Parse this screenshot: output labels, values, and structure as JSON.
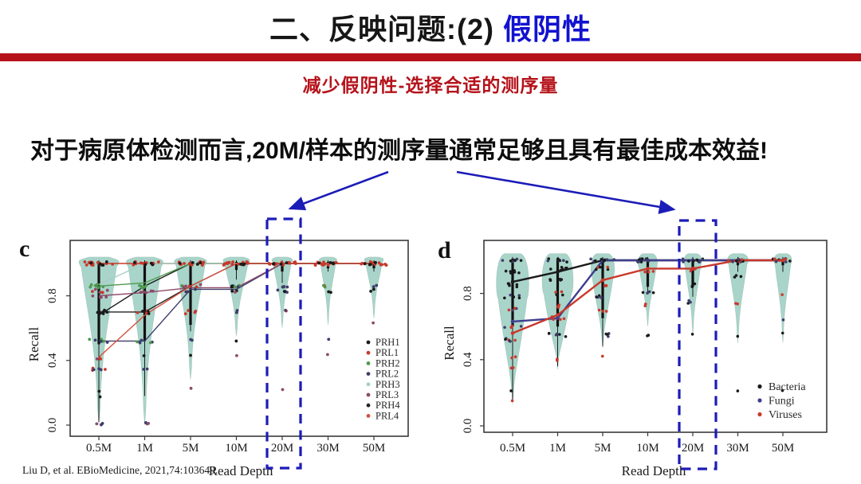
{
  "slide": {
    "title_prefix": "二、反映问题:(2) ",
    "title_highlight": "假阴性",
    "subtitle": "减少假阴性-选择合适的测序量",
    "statement": "对于病原体检测而言,20M/样本的测序量通常足够且具有最佳成本效益!",
    "citation": "Liu D, et al. EBioMedicine, 2021,74:103649.",
    "colors": {
      "accent_red": "#b5121a",
      "title_blue": "#1212cf",
      "annotation_blue": "#1c1cb8",
      "violin_fill": "#a9d4c9"
    }
  },
  "annotations": {
    "highlight_category": "20M",
    "meaning": "20M read depth column highlighted in both panels"
  },
  "chart_data": [
    {
      "id": "c",
      "type": "violin+line",
      "panel_label": "c",
      "xlabel": "Read Depth",
      "ylabel": "Recall",
      "categories": [
        "0.5M",
        "1M",
        "5M",
        "10M",
        "20M",
        "30M",
        "50M"
      ],
      "yticks": [
        0.0,
        0.4,
        0.8
      ],
      "ylim": [
        0,
        1.05
      ],
      "grid": false,
      "legend_position": "right-middle",
      "highlight_category": "20M",
      "series": [
        {
          "name": "PRH1",
          "color": "#1a1a1a",
          "values": [
            0.68,
            0.86,
            1,
            1,
            1,
            1,
            1
          ]
        },
        {
          "name": "PRL1",
          "color": "#c8392b",
          "values": [
            1,
            1,
            1,
            1,
            1,
            1,
            1
          ]
        },
        {
          "name": "PRH2",
          "color": "#4d9a4d",
          "values": [
            0.86,
            0.88,
            1,
            1,
            1,
            1,
            1
          ]
        },
        {
          "name": "PRL2",
          "color": "#3d3d6b",
          "values": [
            0.52,
            0.52,
            0.84,
            0.84,
            1,
            1,
            1
          ]
        },
        {
          "name": "PRH3",
          "color": "#a5cfc4",
          "values": [
            0.87,
            1,
            1,
            1,
            1,
            1,
            1
          ]
        },
        {
          "name": "PRL3",
          "color": "#8e4a6a",
          "values": [
            0.8,
            0.82,
            0.85,
            0.85,
            1,
            1,
            1
          ]
        },
        {
          "name": "PRH4",
          "color": "#232323",
          "values": [
            0.7,
            0.7,
            0.86,
            1,
            1,
            1,
            1
          ]
        },
        {
          "name": "PRL4",
          "color": "#d4503c",
          "values": [
            0.42,
            0.68,
            0.86,
            1,
            1,
            1,
            1
          ]
        }
      ],
      "violins": [
        {
          "lo": 0.0,
          "hi": 1.04,
          "hw": 27,
          "bulge": 0.06
        },
        {
          "lo": 0.0,
          "hi": 1.04,
          "hw": 25,
          "bulge": 0.06
        },
        {
          "lo": 0.28,
          "hi": 1.04,
          "hw": 22,
          "bulge": 0.07
        },
        {
          "lo": 0.55,
          "hi": 1.04,
          "hw": 18,
          "bulge": 0.08
        },
        {
          "lo": 0.6,
          "hi": 1.04,
          "hw": 14,
          "bulge": 0.08
        },
        {
          "lo": 0.62,
          "hi": 1.04,
          "hw": 12,
          "bulge": 0.08
        },
        {
          "lo": 0.66,
          "hi": 1.04,
          "hw": 13,
          "bulge": 0.08
        }
      ],
      "whiskers": [
        [
          0.5,
          0.02
        ],
        [
          0.52,
          0.18
        ],
        [
          0.62,
          0.58
        ],
        [
          0.96,
          0.9
        ],
        [
          0.95,
          0.88
        ],
        [
          0.97,
          0.95
        ],
        [
          0.97,
          0.95
        ]
      ],
      "dot_clusters": [
        [
          [
            1,
            "r",
            15,
            36
          ],
          [
            1,
            "k",
            5,
            30
          ],
          [
            0.86,
            "g",
            7,
            26
          ],
          [
            0.83,
            "p r",
            6,
            26
          ],
          [
            0.8,
            "p",
            4,
            20
          ],
          [
            0.7,
            "k",
            7,
            22
          ],
          [
            0.52,
            "g n",
            6,
            24
          ],
          [
            0.42,
            "r p",
            3,
            10
          ],
          [
            0.35,
            "n r",
            6,
            22
          ],
          [
            0.22,
            "k",
            1,
            2
          ],
          [
            0.18,
            "k",
            1,
            14
          ],
          [
            0.01,
            "n p",
            3,
            10
          ]
        ],
        [
          [
            1,
            "r",
            15,
            36
          ],
          [
            1,
            "k",
            4,
            30
          ],
          [
            0.86,
            "g",
            6,
            26
          ],
          [
            0.83,
            "p",
            5,
            24
          ],
          [
            0.7,
            "r k",
            6,
            22
          ],
          [
            0.52,
            "n g",
            5,
            22
          ],
          [
            0.43,
            "k",
            1,
            4
          ],
          [
            0.35,
            "n",
            2,
            12
          ],
          [
            0.01,
            "p n",
            3,
            14
          ]
        ],
        [
          [
            1,
            "r",
            15,
            36
          ],
          [
            1,
            "k",
            4,
            30
          ],
          [
            0.86,
            "p g r",
            7,
            26
          ],
          [
            0.83,
            "n",
            3,
            18
          ],
          [
            0.7,
            "r",
            4,
            16
          ],
          [
            0.52,
            "n",
            2,
            10
          ],
          [
            0.43,
            "k",
            1,
            2
          ],
          [
            0.22,
            "p",
            1,
            2
          ]
        ],
        [
          [
            1,
            "r",
            14,
            34
          ],
          [
            1,
            "k",
            4,
            28
          ],
          [
            0.86,
            "n g k",
            6,
            22
          ],
          [
            0.83,
            "k p",
            3,
            14
          ],
          [
            0.7,
            "n",
            2,
            8
          ],
          [
            0.53,
            "k",
            1,
            2
          ],
          [
            0.43,
            "p",
            1,
            2
          ]
        ],
        [
          [
            1,
            "r",
            14,
            34
          ],
          [
            1,
            "k",
            4,
            28
          ],
          [
            0.86,
            "n p",
            5,
            20
          ],
          [
            0.83,
            "k n",
            4,
            16
          ],
          [
            0.7,
            "r n",
            2,
            10
          ],
          [
            0.22,
            "p",
            1,
            2
          ]
        ],
        [
          [
            1,
            "r",
            13,
            32
          ],
          [
            1,
            "k",
            4,
            26
          ],
          [
            0.86,
            "g r",
            3,
            14
          ],
          [
            0.83,
            "k",
            2,
            8
          ],
          [
            0.52,
            "n",
            1,
            2
          ],
          [
            0.43,
            "p",
            1,
            2
          ]
        ],
        [
          [
            1,
            "r",
            13,
            32
          ],
          [
            1,
            "k",
            4,
            26
          ],
          [
            0.86,
            "n",
            2,
            8
          ],
          [
            0.83,
            "k",
            2,
            8
          ],
          [
            0.63,
            "p",
            1,
            2
          ]
        ]
      ]
    },
    {
      "id": "d",
      "type": "violin+line",
      "panel_label": "d",
      "xlabel": "Read Depth",
      "ylabel": "Recall",
      "categories": [
        "0.5M",
        "1M",
        "5M",
        "10M",
        "20M",
        "30M",
        "50M"
      ],
      "yticks": [
        0.0,
        0.4,
        0.8
      ],
      "ylim": [
        0,
        1.05
      ],
      "grid": false,
      "legend_position": "right-lower",
      "highlight_category": "20M",
      "series": [
        {
          "name": "Bacteria",
          "color": "#1a1a1a",
          "values": [
            0.87,
            0.93,
            1,
            1,
            1,
            1,
            1
          ]
        },
        {
          "name": "Fungi",
          "color": "#3d3d8f",
          "values": [
            0.63,
            0.65,
            1,
            1,
            1,
            1,
            1
          ]
        },
        {
          "name": "Viruses",
          "color": "#c8392b",
          "values": [
            0.56,
            0.67,
            0.88,
            0.95,
            0.95,
            1,
            1
          ]
        }
      ],
      "violins": [
        {
          "lo": 0.13,
          "hi": 1.04,
          "hw": 22,
          "bulge": 0.3
        },
        {
          "lo": 0.34,
          "hi": 1.04,
          "hw": 21,
          "bulge": 0.35
        },
        {
          "lo": 0.47,
          "hi": 1.04,
          "hw": 16,
          "bulge": 0.25
        },
        {
          "lo": 0.6,
          "hi": 1.04,
          "hw": 13,
          "bulge": 0.2
        },
        {
          "lo": 0.55,
          "hi": 1.04,
          "hw": 12,
          "bulge": 0.15
        },
        {
          "lo": 0.5,
          "hi": 1.04,
          "hw": 14,
          "bulge": 0.12
        },
        {
          "lo": 0.5,
          "hi": 1.04,
          "hw": 12,
          "bulge": 0.12
        }
      ],
      "whiskers": [
        [
          0.6,
          0.15
        ],
        [
          0.6,
          0.36
        ],
        [
          0.65,
          0.48
        ],
        [
          0.84,
          0.8
        ],
        [
          0.84,
          0.78
        ],
        [
          0.97,
          0.93
        ],
        [
          0.97,
          0.93
        ]
      ],
      "dot_clusters": [
        [
          [
            1,
            "k n",
            8,
            30
          ],
          [
            0.93,
            "k",
            6,
            26
          ],
          [
            0.85,
            "k",
            5,
            22
          ],
          [
            0.78,
            "k n",
            5,
            24
          ],
          [
            0.7,
            "n r",
            4,
            20
          ],
          [
            0.6,
            "r n",
            5,
            22
          ],
          [
            0.52,
            "r k n",
            6,
            24
          ],
          [
            0.42,
            "r",
            2,
            10
          ],
          [
            0.35,
            "r",
            2,
            8
          ],
          [
            0.22,
            "k",
            1,
            4
          ],
          [
            0.15,
            "r",
            1,
            2
          ]
        ],
        [
          [
            1,
            "k n",
            8,
            30
          ],
          [
            0.95,
            "k",
            6,
            24
          ],
          [
            0.88,
            "k",
            5,
            22
          ],
          [
            0.8,
            "r k",
            4,
            20
          ],
          [
            0.72,
            "r",
            3,
            14
          ],
          [
            0.65,
            "r",
            4,
            16
          ],
          [
            0.55,
            "k n",
            6,
            24
          ],
          [
            0.4,
            "r",
            2,
            8
          ]
        ],
        [
          [
            1,
            "k n",
            9,
            30
          ],
          [
            0.95,
            "k r",
            5,
            20
          ],
          [
            0.85,
            "r",
            3,
            12
          ],
          [
            0.78,
            "n k",
            4,
            16
          ],
          [
            0.7,
            "r",
            3,
            10
          ],
          [
            0.55,
            "k n",
            4,
            16
          ],
          [
            0.42,
            "r",
            1,
            2
          ]
        ],
        [
          [
            1,
            "k n",
            10,
            30
          ],
          [
            0.93,
            "r",
            4,
            14
          ],
          [
            0.8,
            "k n",
            4,
            16
          ],
          [
            0.73,
            "r",
            2,
            8
          ],
          [
            0.55,
            "k",
            2,
            8
          ]
        ],
        [
          [
            1,
            "k n",
            10,
            30
          ],
          [
            0.94,
            "r",
            4,
            14
          ],
          [
            0.85,
            "k",
            3,
            10
          ],
          [
            0.75,
            "n k",
            3,
            12
          ],
          [
            0.55,
            "k",
            1,
            2
          ]
        ],
        [
          [
            1,
            "k n r",
            9,
            30
          ],
          [
            0.9,
            "k",
            3,
            10
          ],
          [
            0.73,
            "r",
            2,
            6
          ],
          [
            0.55,
            "k",
            1,
            2
          ],
          [
            0.22,
            "k",
            1,
            2
          ]
        ],
        [
          [
            1,
            "k n r",
            9,
            30
          ],
          [
            0.8,
            "r",
            1,
            2
          ],
          [
            0.63,
            "n",
            1,
            2
          ],
          [
            0.55,
            "k",
            1,
            2
          ],
          [
            0.22,
            "k",
            1,
            2
          ]
        ]
      ]
    }
  ]
}
